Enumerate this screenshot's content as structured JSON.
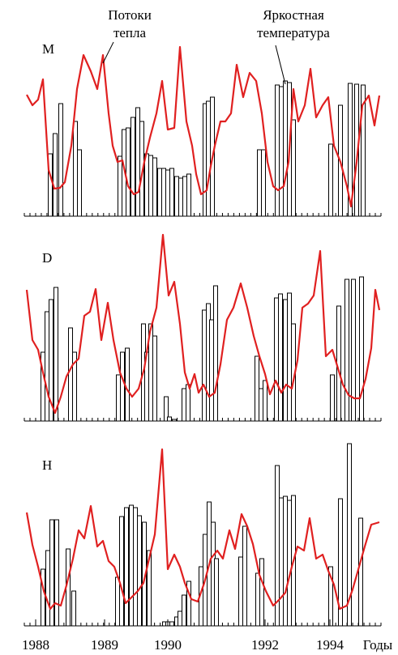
{
  "chart_data": [
    {
      "type": "combo",
      "label": "M",
      "xlim": [
        0,
        440
      ],
      "ylim": [
        0,
        230
      ],
      "annotations": [
        {
          "text": [
            "Потоки",
            "тепла"
          ]
        },
        {
          "text": [
            "Яркостная",
            "температура"
          ]
        }
      ],
      "bars": {
        "color": "#000000",
        "x": [
          32,
          38,
          45,
          63,
          68,
          118,
          123,
          128,
          134,
          140,
          145,
          151,
          156,
          161,
          167,
          172,
          177,
          182,
          188,
          193,
          198,
          203,
          223,
          227,
          232,
          290,
          295,
          312,
          317,
          322,
          327,
          332,
          378,
          390,
          402,
          410,
          418
        ],
        "values": [
          77,
          102,
          139,
          117,
          82,
          74,
          107,
          109,
          122,
          134,
          117,
          77,
          75,
          72,
          59,
          59,
          57,
          59,
          49,
          47,
          49,
          52,
          139,
          142,
          147,
          82,
          82,
          162,
          160,
          167,
          165,
          119,
          89,
          137,
          164,
          163,
          162
        ]
      },
      "line": {
        "color": "#e02020",
        "x": [
          3,
          10,
          17,
          23,
          30,
          37,
          44,
          50,
          58,
          65,
          73,
          82,
          90,
          97,
          104,
          109,
          115,
          121,
          128,
          135,
          141,
          148,
          155,
          163,
          170,
          177,
          185,
          192,
          200,
          207,
          212,
          218,
          225,
          230,
          235,
          242,
          248,
          255,
          262,
          270,
          278,
          286,
          293,
          300,
          307,
          313,
          320,
          326,
          332,
          338,
          346,
          353,
          360,
          368,
          375,
          382,
          390,
          398,
          403,
          410,
          417,
          425,
          432,
          438
        ],
        "values": [
          150,
          137,
          144,
          169,
          57,
          34,
          35,
          42,
          87,
          157,
          199,
          179,
          157,
          199,
          127,
          87,
          67,
          69,
          37,
          27,
          30,
          67,
          97,
          127,
          167,
          107,
          109,
          209,
          117,
          87,
          52,
          27,
          32,
          62,
          87,
          117,
          117,
          127,
          187,
          147,
          177,
          167,
          127,
          67,
          37,
          32,
          37,
          67,
          157,
          117,
          137,
          182,
          122,
          137,
          147,
          87,
          67,
          37,
          12,
          67,
          137,
          149,
          112,
          149
        ]
      }
    },
    {
      "type": "combo",
      "label": "D",
      "xlim": [
        0,
        440
      ],
      "ylim": [
        0,
        230
      ],
      "bars": {
        "color": "#000000",
        "x": [
          23,
          28,
          33,
          39,
          57,
          62,
          116,
          121,
          127,
          147,
          151,
          156,
          161,
          175,
          179,
          185,
          197,
          202,
          222,
          227,
          231,
          236,
          287,
          292,
          297,
          311,
          316,
          322,
          327,
          332,
          380,
          388,
          398,
          406,
          416
        ],
        "values": [
          85,
          135,
          150,
          165,
          115,
          85,
          57,
          85,
          90,
          120,
          85,
          120,
          105,
          30,
          5,
          2,
          40,
          45,
          137,
          145,
          125,
          167,
          80,
          40,
          50,
          152,
          157,
          150,
          158,
          120,
          57,
          142,
          175,
          175,
          178
        ]
      },
      "line": {
        "color": "#e02020",
        "x": [
          3,
          10,
          17,
          23,
          30,
          38,
          45,
          52,
          60,
          67,
          74,
          81,
          88,
          95,
          103,
          110,
          118,
          126,
          133,
          141,
          148,
          155,
          163,
          171,
          178,
          185,
          192,
          198,
          204,
          210,
          215,
          221,
          228,
          235,
          242,
          250,
          258,
          267,
          275,
          283,
          290,
          297,
          303,
          310,
          317,
          323,
          330,
          337,
          343,
          350,
          357,
          365,
          372,
          380,
          387,
          393,
          400,
          407,
          414,
          421,
          428,
          433,
          438
        ],
        "values": [
          162,
          100,
          88,
          60,
          30,
          10,
          30,
          55,
          70,
          77,
          130,
          135,
          163,
          100,
          146,
          100,
          60,
          40,
          30,
          40,
          65,
          110,
          140,
          230,
          155,
          172,
          120,
          60,
          40,
          58,
          35,
          45,
          30,
          35,
          70,
          125,
          140,
          170,
          140,
          105,
          80,
          58,
          33,
          50,
          35,
          45,
          40,
          75,
          140,
          145,
          155,
          210,
          80,
          88,
          65,
          45,
          32,
          28,
          28,
          52,
          90,
          162,
          137
        ]
      }
    },
    {
      "type": "combo",
      "label": "H",
      "xlim": [
        0,
        440
      ],
      "ylim": [
        0,
        230
      ],
      "xlabel": "Годы",
      "xticks": [
        {
          "value": -8,
          "label": "1988"
        },
        {
          "value": 77,
          "label": "1989"
        },
        {
          "value": 155,
          "label": "1990"
        },
        {
          "value": 275,
          "label": "1992"
        },
        {
          "value": 355,
          "label": "1994"
        }
      ],
      "bars": {
        "color": "#000000",
        "x": [
          23,
          29,
          34,
          40,
          54,
          61,
          115,
          120,
          126,
          132,
          137,
          142,
          148,
          154,
          173,
          177,
          182,
          188,
          192,
          197,
          203,
          218,
          223,
          228,
          233,
          237,
          267,
          272,
          288,
          293,
          312,
          317,
          322,
          327,
          332,
          378,
          390,
          401,
          415
        ],
        "values": [
          70,
          93,
          131,
          131,
          95,
          43,
          60,
          135,
          146,
          149,
          146,
          136,
          128,
          93,
          5,
          5,
          5,
          11,
          18,
          38,
          55,
          73,
          113,
          153,
          128,
          83,
          85,
          123,
          65,
          83,
          198,
          158,
          160,
          155,
          161,
          73,
          157,
          225,
          133
        ]
      },
      "line": {
        "color": "#e02020",
        "x": [
          3,
          10,
          17,
          24,
          32,
          38,
          45,
          52,
          60,
          67,
          74,
          82,
          90,
          97,
          104,
          111,
          118,
          125,
          132,
          140,
          147,
          154,
          161,
          170,
          177,
          185,
          192,
          198,
          206,
          214,
          222,
          230,
          238,
          245,
          253,
          260,
          268,
          275,
          282,
          290,
          298,
          307,
          315,
          322,
          330,
          337,
          345,
          352,
          360,
          368,
          375,
          382,
          389,
          398,
          405,
          413,
          420,
          428,
          438
        ],
        "values": [
          140,
          100,
          73,
          43,
          21,
          28,
          25,
          50,
          83,
          118,
          108,
          148,
          98,
          105,
          80,
          73,
          53,
          28,
          35,
          43,
          53,
          83,
          113,
          218,
          70,
          88,
          73,
          53,
          33,
          30,
          53,
          83,
          93,
          83,
          118,
          95,
          138,
          123,
          101,
          63,
          43,
          25,
          33,
          41,
          73,
          98,
          93,
          133,
          83,
          88,
          68,
          51,
          21,
          25,
          45,
          73,
          98,
          125,
          128
        ]
      }
    }
  ]
}
